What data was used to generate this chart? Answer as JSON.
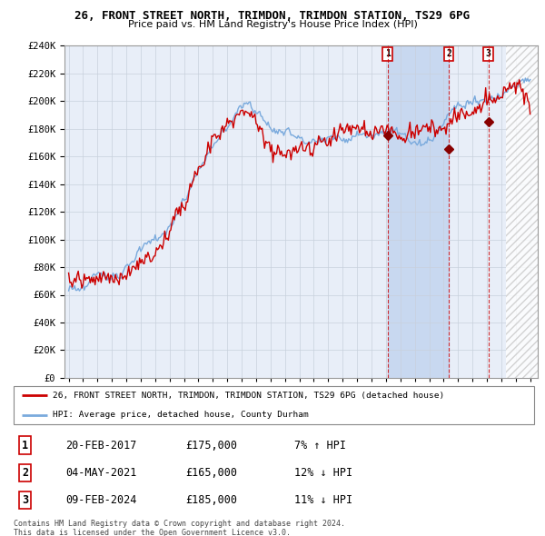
{
  "title1": "26, FRONT STREET NORTH, TRIMDON, TRIMDON STATION, TS29 6PG",
  "title2": "Price paid vs. HM Land Registry's House Price Index (HPI)",
  "legend_line1": "26, FRONT STREET NORTH, TRIMDON, TRIMDON STATION, TS29 6PG (detached house)",
  "legend_line2": "HPI: Average price, detached house, County Durham",
  "footer1": "Contains HM Land Registry data © Crown copyright and database right 2024.",
  "footer2": "This data is licensed under the Open Government Licence v3.0.",
  "sale_labels": [
    "1",
    "2",
    "3"
  ],
  "sale_dates": [
    "20-FEB-2017",
    "04-MAY-2021",
    "09-FEB-2024"
  ],
  "sale_prices": [
    175000,
    165000,
    185000
  ],
  "sale_hpi_diff": [
    "7% ↑ HPI",
    "12% ↓ HPI",
    "11% ↓ HPI"
  ],
  "red_color": "#cc0000",
  "blue_color": "#7aaadd",
  "sale_marker_color": "#880000",
  "background_color": "#ffffff",
  "chart_bg": "#e8eef8",
  "grid_color": "#c8d0dc",
  "highlight_color": "#c8d8f0",
  "hatch_color": "#c8c8c8",
  "ylim": [
    0,
    240000
  ],
  "ytick_step": 20000,
  "xmin": 1994.7,
  "xmax": 2027.5,
  "sale_years": [
    2017.12,
    2021.35,
    2024.1
  ],
  "hatch_start": 2025.3
}
